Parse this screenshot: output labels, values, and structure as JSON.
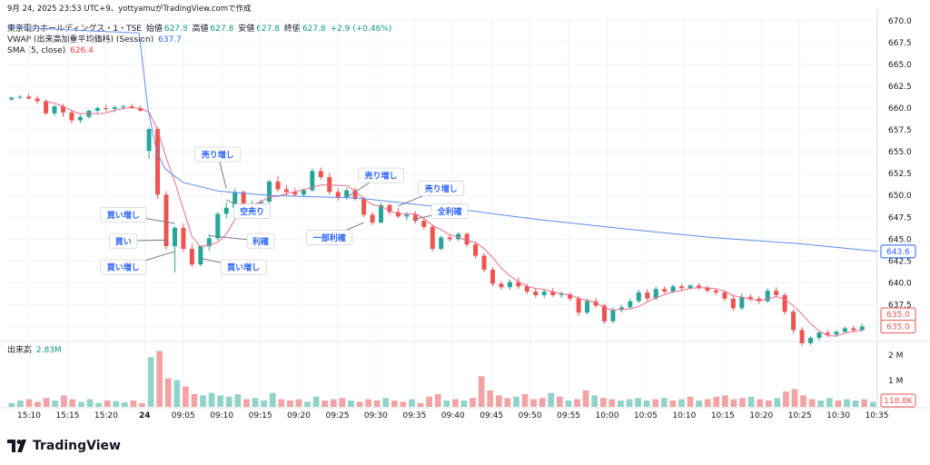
{
  "header": {
    "top_line": "9月 24, 2025 23:53 UTC+9、yottyamuがTradingView.comで作成",
    "symbol": "東京電力ホールディングス・1・TSE",
    "open_label": "始値",
    "open_value": "627.8",
    "high_label": "高値",
    "high_value": "627.8",
    "low_label": "安値",
    "low_value": "627.8",
    "close_label": "終値",
    "close_value": "627.8",
    "change": "+2.9 (+0.46%)",
    "vwap_label": "VWAP (出来高加重平均価格) (Session)",
    "vwap_value": "637.7",
    "sma_label": "SMA (5, close)",
    "sma_value": "626.4",
    "volume_label": "出来高",
    "volume_value": "2.83M"
  },
  "logo_text": "TradingView",
  "colors": {
    "up": "#26a69a",
    "down": "#ef5350",
    "vwap": "#5b8def",
    "sma": "#f06a8a",
    "vol_up": "#8fd3c9",
    "vol_down": "#f3a3a3"
  },
  "chart_data": {
    "type": "candlestick",
    "y_ticks": [
      "670.0",
      "667.5",
      "665.0",
      "662.5",
      "660.0",
      "657.5",
      "655.0",
      "652.5",
      "650.0",
      "647.5",
      "645.0",
      "642.5",
      "640.0",
      "637.5",
      "635.0"
    ],
    "ylim": [
      633.5,
      670.5
    ],
    "x_ticks": [
      "15:10",
      "15:15",
      "15:20",
      "24",
      "09:05",
      "09:10",
      "09:15",
      "09:20",
      "09:25",
      "09:30",
      "09:35",
      "09:40",
      "09:45",
      "09:50",
      "09:55",
      "10:00",
      "10:05",
      "10:10",
      "10:15",
      "10:20",
      "10:25",
      "10:30",
      "10:35"
    ],
    "price_labels": {
      "vwap": "643.6",
      "close": "635.0",
      "close2": "635.0"
    },
    "volume_ticks": [
      "2 M",
      "1 M"
    ],
    "volume_label_right": "118.8K",
    "candles": [
      [
        661,
        661.3,
        660.8,
        661.2
      ],
      [
        661.2,
        661.5,
        661,
        661.3
      ],
      [
        661.3,
        661.6,
        661,
        661.1
      ],
      [
        661.1,
        661.4,
        660.5,
        660.8
      ],
      [
        660.8,
        661,
        659.2,
        659.4
      ],
      [
        659.4,
        660.4,
        659.1,
        660.2
      ],
      [
        660.2,
        660.5,
        659,
        659.5
      ],
      [
        659.5,
        659.8,
        658.2,
        658.6
      ],
      [
        658.6,
        659.2,
        658.3,
        659
      ],
      [
        659,
        659.8,
        658.8,
        659.7
      ],
      [
        659.7,
        660.2,
        659.4,
        660
      ],
      [
        660,
        660.4,
        659.6,
        659.9
      ],
      [
        659.9,
        660.3,
        659.5,
        660.1
      ],
      [
        660.1,
        660.4,
        659.8,
        660.2
      ],
      [
        660.2,
        660.5,
        659.9,
        660
      ],
      [
        660,
        660.3,
        659.6,
        659.7
      ],
      [
        655.1,
        657.8,
        654.2,
        657.6
      ],
      [
        657.6,
        657.8,
        649.6,
        650.1
      ],
      [
        650.1,
        650.5,
        643.8,
        644.2
      ],
      [
        644.2,
        646.5,
        641.2,
        646.3
      ],
      [
        646.3,
        646.8,
        643.5,
        643.9
      ],
      [
        643.9,
        644.5,
        641.8,
        642.1
      ],
      [
        642.1,
        644.3,
        641.9,
        644.2
      ],
      [
        644.2,
        645.6,
        643.7,
        645.1
      ],
      [
        645.1,
        648.1,
        644.8,
        647.9
      ],
      [
        647.9,
        649.2,
        647.4,
        648.6
      ],
      [
        648.6,
        650.8,
        648.2,
        650.4
      ],
      [
        650.4,
        650.6,
        648.6,
        648.8
      ],
      [
        648.8,
        649.4,
        648.3,
        649.1
      ],
      [
        649.1,
        649.5,
        648.6,
        649.3
      ],
      [
        649.3,
        651.8,
        649.1,
        651.6
      ],
      [
        651.6,
        652.2,
        650.4,
        650.7
      ],
      [
        650.7,
        651.2,
        650,
        650.4
      ],
      [
        650.4,
        650.9,
        649.9,
        650.1
      ],
      [
        650.1,
        650.8,
        649.8,
        650.6
      ],
      [
        650.6,
        653.1,
        650.4,
        652.8
      ],
      [
        652.8,
        653.2,
        651.8,
        652.1
      ],
      [
        652.1,
        652.6,
        650.1,
        650.4
      ],
      [
        650.4,
        650.8,
        649.4,
        649.8
      ],
      [
        649.8,
        650.9,
        649.5,
        650.6
      ],
      [
        650.6,
        650.9,
        649.4,
        649.6
      ],
      [
        649.6,
        649.9,
        647.5,
        647.8
      ],
      [
        647.8,
        648.1,
        646.6,
        646.9
      ],
      [
        646.9,
        649.2,
        646.8,
        648.9
      ],
      [
        648.9,
        649.1,
        647.8,
        648.1
      ],
      [
        648.1,
        648.6,
        647.4,
        647.6
      ],
      [
        647.6,
        648.1,
        647.2,
        647.8
      ],
      [
        647.8,
        648.2,
        646.8,
        647.1
      ],
      [
        647.1,
        647.5,
        646.1,
        646.4
      ],
      [
        646.4,
        646.7,
        643.6,
        643.9
      ],
      [
        643.9,
        645.4,
        643.7,
        645.2
      ],
      [
        645.2,
        645.6,
        644.7,
        645
      ],
      [
        645,
        645.8,
        644.8,
        645.6
      ],
      [
        645.6,
        645.8,
        644.1,
        644.4
      ],
      [
        644.4,
        644.7,
        642.8,
        643.1
      ],
      [
        643.1,
        643.4,
        641.2,
        641.5
      ],
      [
        641.5,
        641.8,
        639.6,
        639.9
      ],
      [
        639.9,
        640.2,
        639.2,
        639.5
      ],
      [
        639.5,
        640.4,
        639.2,
        640.1
      ],
      [
        640.1,
        640.6,
        639.3,
        639.6
      ],
      [
        639.6,
        639.9,
        638.7,
        639
      ],
      [
        639,
        639.4,
        638.3,
        638.6
      ],
      [
        638.6,
        639.3,
        638.3,
        639
      ],
      [
        639,
        639.4,
        638.4,
        638.6
      ],
      [
        638.6,
        639,
        638.3,
        638.7
      ],
      [
        638.7,
        638.9,
        637.9,
        638.2
      ],
      [
        638.2,
        638.5,
        636.2,
        636.6
      ],
      [
        636.6,
        638.2,
        636.4,
        637.9
      ],
      [
        637.9,
        638.3,
        637.1,
        637.4
      ],
      [
        637.4,
        637.6,
        635.3,
        635.6
      ],
      [
        635.6,
        637.2,
        635.4,
        636.9
      ],
      [
        636.9,
        637.5,
        636.6,
        637.2
      ],
      [
        637.2,
        638.2,
        637,
        637.9
      ],
      [
        637.9,
        639.2,
        637.7,
        638.9
      ],
      [
        638.9,
        639.3,
        637.9,
        638.2
      ],
      [
        638.2,
        639.6,
        638,
        639.3
      ],
      [
        639.3,
        639.6,
        638.8,
        639
      ],
      [
        639,
        639.8,
        638.8,
        639.6
      ],
      [
        639.6,
        639.9,
        639.1,
        639.4
      ],
      [
        639.4,
        639.8,
        639.2,
        639.7
      ],
      [
        639.7,
        640,
        639.2,
        639.4
      ],
      [
        639.4,
        639.7,
        638.9,
        639.1
      ],
      [
        639.1,
        639.4,
        638.6,
        638.9
      ],
      [
        638.9,
        639.2,
        637.9,
        638.2
      ],
      [
        638.2,
        638.6,
        636.8,
        637.1
      ],
      [
        637.1,
        638.8,
        636.9,
        638.4
      ],
      [
        638.4,
        638.7,
        637.9,
        638.2
      ],
      [
        638.2,
        638.5,
        637.6,
        637.9
      ],
      [
        637.9,
        639.4,
        637.7,
        639.1
      ],
      [
        639.1,
        639.5,
        638.3,
        638.6
      ],
      [
        638.6,
        638.9,
        636.4,
        636.7
      ],
      [
        636.7,
        637,
        634.2,
        634.6
      ],
      [
        634.6,
        634.9,
        632.8,
        633.1
      ],
      [
        633.1,
        633.9,
        632.9,
        633.7
      ],
      [
        633.7,
        634.5,
        633.4,
        634.3
      ],
      [
        634.3,
        634.6,
        633.8,
        634.1
      ],
      [
        634.1,
        634.6,
        633.8,
        634.4
      ],
      [
        634.4,
        635,
        634.2,
        634.8
      ],
      [
        634.8,
        635.1,
        634.3,
        634.6
      ],
      [
        634.6,
        635.3,
        634.4,
        635
      ]
    ],
    "volume_rel": [
      0.06,
      0.1,
      0.12,
      0.08,
      0.14,
      0.1,
      0.18,
      0.12,
      0.08,
      0.12,
      0.06,
      0.1,
      0.09,
      0.07,
      0.1,
      0.06,
      0.78,
      0.88,
      0.45,
      0.42,
      0.32,
      0.2,
      0.18,
      0.22,
      0.18,
      0.16,
      0.2,
      0.12,
      0.14,
      0.1,
      0.22,
      0.12,
      0.1,
      0.12,
      0.08,
      0.16,
      0.1,
      0.12,
      0.14,
      0.1,
      0.08,
      0.12,
      0.1,
      0.14,
      0.1,
      0.08,
      0.12,
      0.06,
      0.16,
      0.2,
      0.1,
      0.12,
      0.1,
      0.14,
      0.48,
      0.26,
      0.18,
      0.14,
      0.16,
      0.2,
      0.12,
      0.14,
      0.22,
      0.16,
      0.1,
      0.12,
      0.26,
      0.18,
      0.14,
      0.12,
      0.1,
      0.12,
      0.14,
      0.1,
      0.12,
      0.14,
      0.1,
      0.12,
      0.16,
      0.1,
      0.12,
      0.16,
      0.18,
      0.12,
      0.14,
      0.16,
      0.12,
      0.1,
      0.14,
      0.24,
      0.28,
      0.18,
      0.12,
      0.1,
      0.14,
      0.1,
      0.12,
      0.1,
      0.12,
      0.08
    ],
    "vwap_line": [
      [
        0,
        669.3
      ],
      [
        8,
        668.9
      ],
      [
        15,
        668.6
      ],
      [
        16,
        660
      ],
      [
        17,
        655
      ],
      [
        18,
        653
      ],
      [
        20,
        651.5
      ],
      [
        24,
        650.5
      ],
      [
        30,
        650
      ],
      [
        40,
        649.7
      ],
      [
        50,
        648.6
      ],
      [
        60,
        647.3
      ],
      [
        70,
        646.2
      ],
      [
        80,
        645.2
      ],
      [
        90,
        644.5
      ],
      [
        99,
        643.6
      ]
    ],
    "annotations": [
      {
        "text": "売り増し",
        "x": 24,
        "y": 654.7,
        "ax": 25,
        "ay": 650.8
      },
      {
        "text": "空売り",
        "x": 28,
        "y": 648.2,
        "ax": 25,
        "ay": 649.5
      },
      {
        "text": "買い増し",
        "x": 13,
        "y": 647.8,
        "ax": 19,
        "ay": 646.8
      },
      {
        "text": "買い",
        "x": 13,
        "y": 644.8,
        "ax": 18,
        "ay": 644.9
      },
      {
        "text": "利確",
        "x": 29,
        "y": 644.8,
        "ax": 23,
        "ay": 645.4
      },
      {
        "text": "買い増し",
        "x": 13,
        "y": 641.8,
        "ax": 19,
        "ay": 643.6
      },
      {
        "text": "買い増し",
        "x": 27,
        "y": 641.8,
        "ax": 22,
        "ay": 642.8
      },
      {
        "text": "売り増し",
        "x": 43,
        "y": 652.3,
        "ax": 39,
        "ay": 649.8
      },
      {
        "text": "売り増し",
        "x": 50,
        "y": 650.8,
        "ax": 45,
        "ay": 648.8
      },
      {
        "text": "全利確",
        "x": 51,
        "y": 648.2,
        "ax": 47,
        "ay": 647.3
      },
      {
        "text": "一部利確",
        "x": 37,
        "y": 645.2,
        "ax": 41,
        "ay": 646.9
      }
    ]
  }
}
